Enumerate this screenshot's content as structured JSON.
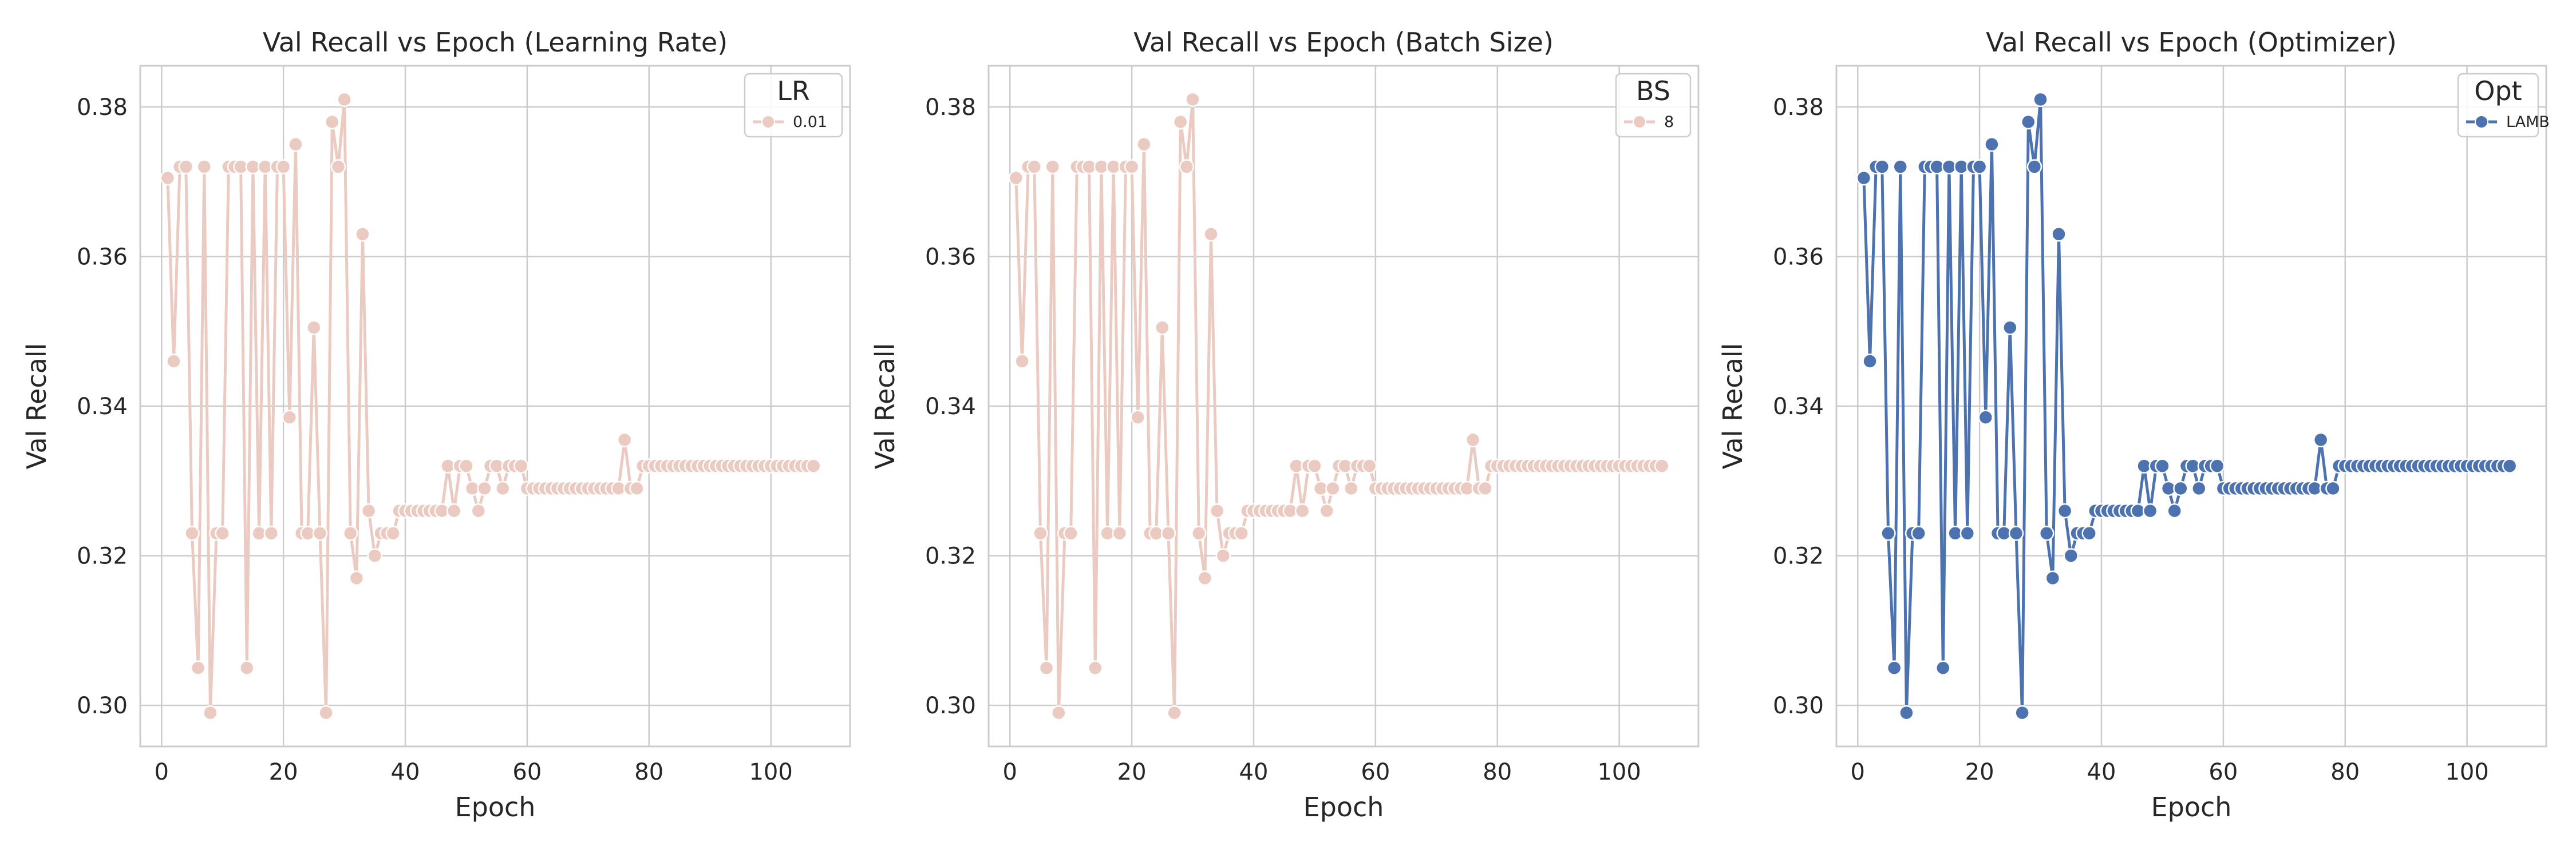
{
  "chart_data": [
    {
      "type": "line",
      "title": "Val Recall vs Epoch (Learning Rate)",
      "xlabel": "Epoch",
      "ylabel": "Val Recall",
      "xlim": [
        -3.5,
        113
      ],
      "ylim": [
        0.2945,
        0.3855
      ],
      "xticks": [
        0,
        20,
        40,
        60,
        80,
        100
      ],
      "yticks": [
        0.3,
        0.32,
        0.34,
        0.36,
        0.38
      ],
      "ytick_labels": [
        "0.30",
        "0.32",
        "0.34",
        "0.36",
        "0.38"
      ],
      "grid": true,
      "legend": {
        "title": "LR",
        "position": "top-right"
      },
      "series": [
        {
          "name": "0.01",
          "color": "#ebcbc1"
        }
      ]
    },
    {
      "type": "line",
      "title": "Val Recall vs Epoch (Batch Size)",
      "xlabel": "Epoch",
      "ylabel": "Val Recall",
      "xlim": [
        -3.5,
        113
      ],
      "ylim": [
        0.2945,
        0.3855
      ],
      "xticks": [
        0,
        20,
        40,
        60,
        80,
        100
      ],
      "yticks": [
        0.3,
        0.32,
        0.34,
        0.36,
        0.38
      ],
      "ytick_labels": [
        "0.30",
        "0.32",
        "0.34",
        "0.36",
        "0.38"
      ],
      "grid": true,
      "legend": {
        "title": "BS",
        "position": "top-right"
      },
      "series": [
        {
          "name": "8",
          "color": "#ebcbc1"
        }
      ]
    },
    {
      "type": "line",
      "title": "Val Recall vs Epoch (Optimizer)",
      "xlabel": "Epoch",
      "ylabel": "Val Recall",
      "xlim": [
        -3.5,
        113
      ],
      "ylim": [
        0.2945,
        0.3855
      ],
      "xticks": [
        0,
        20,
        40,
        60,
        80,
        100
      ],
      "yticks": [
        0.3,
        0.32,
        0.34,
        0.36,
        0.38
      ],
      "ytick_labels": [
        "0.30",
        "0.32",
        "0.34",
        "0.36",
        "0.38"
      ],
      "grid": true,
      "legend": {
        "title": "Opt",
        "position": "top-right"
      },
      "series": [
        {
          "name": "LAMB",
          "color": "#4c72b0"
        }
      ]
    }
  ],
  "shared_series_data": {
    "x": [
      1,
      2,
      3,
      4,
      5,
      6,
      7,
      8,
      9,
      10,
      11,
      12,
      13,
      14,
      15,
      16,
      17,
      18,
      19,
      20,
      21,
      22,
      23,
      24,
      25,
      26,
      27,
      28,
      29,
      30,
      31,
      32,
      33,
      34,
      35,
      36,
      37,
      38,
      39,
      40,
      41,
      42,
      43,
      44,
      45,
      46,
      47,
      48,
      49,
      50,
      51,
      52,
      53,
      54,
      55,
      56,
      57,
      58,
      59,
      60,
      61,
      62,
      63,
      64,
      65,
      66,
      67,
      68,
      69,
      70,
      71,
      72,
      73,
      74,
      75,
      76,
      77,
      78,
      79,
      80,
      81,
      82,
      83,
      84,
      85,
      86,
      87,
      88,
      89,
      90,
      91,
      92,
      93,
      94,
      95,
      96,
      97,
      98,
      99,
      100,
      101,
      102,
      103,
      104,
      105,
      106,
      107
    ],
    "y": [
      0.3705,
      0.346,
      0.372,
      0.372,
      0.323,
      0.305,
      0.372,
      0.299,
      0.323,
      0.323,
      0.372,
      0.372,
      0.372,
      0.305,
      0.372,
      0.323,
      0.372,
      0.323,
      0.372,
      0.372,
      0.3385,
      0.375,
      0.323,
      0.323,
      0.3505,
      0.323,
      0.299,
      0.378,
      0.372,
      0.381,
      0.323,
      0.317,
      0.363,
      0.326,
      0.32,
      0.323,
      0.323,
      0.323,
      0.326,
      0.326,
      0.326,
      0.326,
      0.326,
      0.326,
      0.326,
      0.326,
      0.332,
      0.326,
      0.332,
      0.332,
      0.329,
      0.326,
      0.329,
      0.332,
      0.332,
      0.329,
      0.332,
      0.332,
      0.332,
      0.329,
      0.329,
      0.329,
      0.329,
      0.329,
      0.329,
      0.329,
      0.329,
      0.329,
      0.329,
      0.329,
      0.329,
      0.329,
      0.329,
      0.329,
      0.329,
      0.3355,
      0.329,
      0.329,
      0.332,
      0.332,
      0.332,
      0.332,
      0.332,
      0.332,
      0.332,
      0.332,
      0.332,
      0.332,
      0.332,
      0.332,
      0.332,
      0.332,
      0.332,
      0.332,
      0.332,
      0.332,
      0.332,
      0.332,
      0.332,
      0.332,
      0.332,
      0.332,
      0.332,
      0.332,
      0.332,
      0.332,
      0.332
    ]
  }
}
